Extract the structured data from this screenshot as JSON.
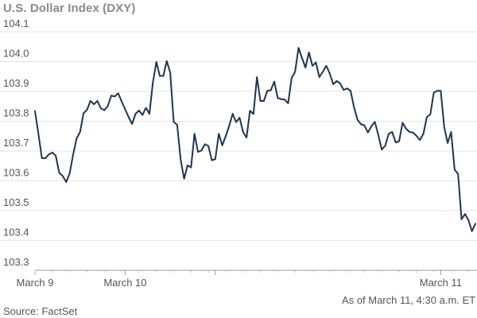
{
  "chart_data": {
    "type": "line",
    "title": "U.S. Dollar Index (DXY)",
    "ylim": [
      103.3,
      104.1
    ],
    "yticks": [
      {
        "value": 104.1,
        "label": "104.1"
      },
      {
        "value": 104.0,
        "label": "104.0"
      },
      {
        "value": 103.9,
        "label": "103.9"
      },
      {
        "value": 103.8,
        "label": "103.8"
      },
      {
        "value": 103.7,
        "label": "103.7"
      },
      {
        "value": 103.6,
        "label": "103.6"
      },
      {
        "value": 103.5,
        "label": "103.5"
      },
      {
        "value": 103.4,
        "label": "103.4"
      },
      {
        "value": 103.3,
        "label": "103.3"
      }
    ],
    "xticks": [
      {
        "x": 0,
        "label": "March 9"
      },
      {
        "x": 26,
        "label": "March 10"
      },
      {
        "x": 52,
        "label": ""
      },
      {
        "x": 117,
        "label": "March 11"
      }
    ],
    "grid": true,
    "color": "#1f3550",
    "series": [
      {
        "values": [
          103.834,
          103.757,
          103.676,
          103.676,
          103.689,
          103.695,
          103.684,
          103.627,
          103.616,
          103.596,
          103.625,
          103.688,
          103.742,
          103.764,
          103.827,
          103.838,
          103.868,
          103.857,
          103.868,
          103.843,
          103.837,
          103.851,
          103.886,
          103.883,
          103.894,
          103.866,
          103.84,
          103.814,
          103.791,
          103.825,
          103.836,
          103.821,
          103.845,
          103.825,
          103.93,
          103.999,
          103.952,
          103.952,
          104.002,
          103.963,
          103.798,
          103.788,
          103.672,
          103.607,
          103.652,
          103.645,
          103.758,
          103.697,
          103.702,
          103.723,
          103.717,
          103.669,
          103.673,
          103.758,
          103.719,
          103.75,
          103.784,
          103.825,
          103.797,
          103.812,
          103.764,
          103.745,
          103.835,
          103.824,
          103.948,
          103.868,
          103.868,
          103.902,
          103.904,
          103.933,
          103.878,
          103.874,
          103.873,
          103.86,
          103.945,
          103.966,
          104.046,
          104.012,
          103.98,
          104.031,
          103.986,
          103.997,
          103.948,
          103.966,
          103.986,
          103.96,
          103.924,
          103.935,
          103.927,
          103.905,
          103.91,
          103.902,
          103.847,
          103.805,
          103.79,
          103.786,
          103.762,
          103.783,
          103.798,
          103.754,
          103.705,
          103.718,
          103.758,
          103.764,
          103.729,
          103.733,
          103.795,
          103.775,
          103.764,
          103.762,
          103.751,
          103.737,
          103.758,
          103.814,
          103.823,
          103.896,
          103.902,
          103.902,
          103.781,
          103.727,
          103.764,
          103.638,
          103.623,
          103.471,
          103.489,
          103.468,
          103.431,
          103.456
        ]
      }
    ],
    "source": "Source: FactSet",
    "as_of": "As of March 11, 4:30 a.m. ET"
  }
}
